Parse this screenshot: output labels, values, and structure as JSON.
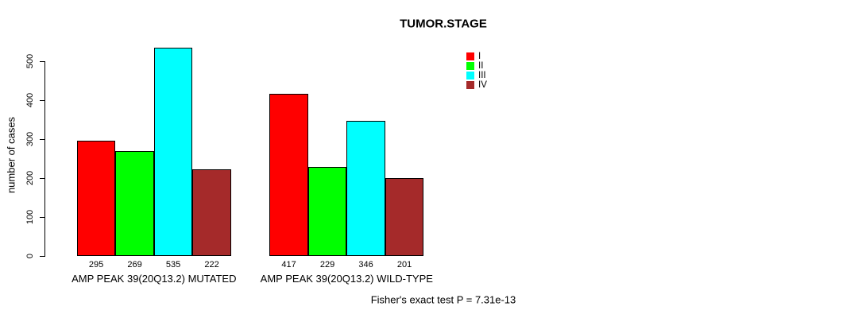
{
  "page": {
    "title": "TUMOR.STAGE",
    "footer": "Fisher's exact test P = 7.31e-13"
  },
  "chart_data": {
    "type": "bar",
    "title": "TUMOR.STAGE",
    "xlabel": "",
    "ylabel": "number of cases",
    "ylim": [
      0,
      555
    ],
    "yticks": [
      0,
      100,
      200,
      300,
      400,
      500
    ],
    "grid": false,
    "legend_position": "top-right",
    "categories": [
      "AMP PEAK 39(20Q13.2) MUTATED",
      "AMP PEAK 39(20Q13.2) WILD-TYPE"
    ],
    "series": [
      {
        "name": "I",
        "color": "#ff0000",
        "values": [
          295,
          417
        ]
      },
      {
        "name": "II",
        "color": "#00ff00",
        "values": [
          269,
          229
        ]
      },
      {
        "name": "III",
        "color": "#00ffff",
        "values": [
          535,
          346
        ]
      },
      {
        "name": "IV",
        "color": "#a52a2a",
        "values": [
          222,
          201
        ]
      }
    ],
    "bar_value_labels": [
      [
        295,
        269,
        535,
        222
      ],
      [
        417,
        229,
        346,
        201
      ]
    ],
    "annotation": "Fisher's exact test P = 7.31e-13"
  }
}
